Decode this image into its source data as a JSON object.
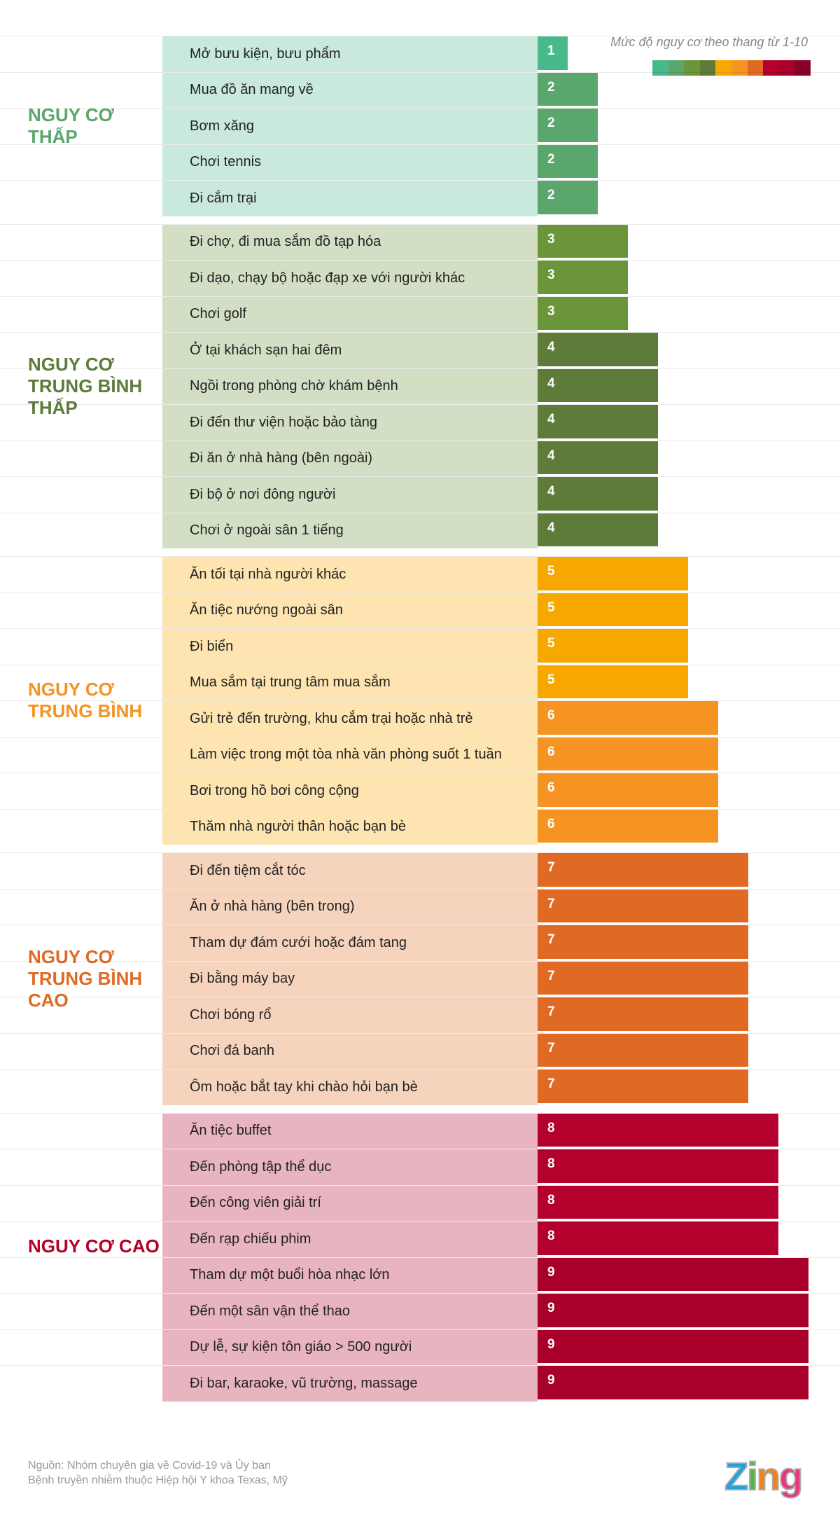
{
  "chart_data": {
    "type": "bar",
    "orientation": "horizontal",
    "legend_title": "Mức độ nguy cơ theo thang từ 1-10",
    "xlim": [
      0,
      10
    ],
    "scale_colors": [
      "#47b98a",
      "#5aa66c",
      "#6a9639",
      "#5e7b3a",
      "#f7a800",
      "#f59323",
      "#e06a23",
      "#b4002c",
      "#a8002b",
      "#8a0028"
    ],
    "groups": [
      {
        "title": "NGUY CƠ THẤP",
        "color": "#5aa66c",
        "bg": "#c8e9dc",
        "items": [
          {
            "label": "Mở bưu kiện, bưu phẩm",
            "value": 1
          },
          {
            "label": "Mua đồ ăn mang về",
            "value": 2
          },
          {
            "label": "Bơm xăng",
            "value": 2
          },
          {
            "label": "Chơi tennis",
            "value": 2
          },
          {
            "label": "Đi cắm trại",
            "value": 2
          }
        ]
      },
      {
        "title": "NGUY CƠ TRUNG BÌNH THẤP",
        "color": "#5e7b3a",
        "bg": "#d3dfc4",
        "items": [
          {
            "label": "Đi chợ, đi mua sắm đồ tạp hóa",
            "value": 3
          },
          {
            "label": "Đi dạo, chạy bộ hoặc đạp xe với người khác",
            "value": 3
          },
          {
            "label": "Chơi golf",
            "value": 3
          },
          {
            "label": "Ở tại khách sạn hai đêm",
            "value": 4
          },
          {
            "label": "Ngồi trong phòng chờ khám bệnh",
            "value": 4
          },
          {
            "label": "Đi đến thư viện hoặc bảo tàng",
            "value": 4
          },
          {
            "label": "Đi ăn ở nhà hàng (bên ngoài)",
            "value": 4
          },
          {
            "label": "Đi bộ ở nơi đông người",
            "value": 4
          },
          {
            "label": "Chơi ở ngoài sân 1 tiếng",
            "value": 4
          }
        ]
      },
      {
        "title": "NGUY CƠ TRUNG BÌNH",
        "color": "#f39323",
        "bg": "#fde4b0",
        "items": [
          {
            "label": "Ăn tối tại nhà người khác",
            "value": 5
          },
          {
            "label": "Ăn tiệc nướng ngoài sân",
            "value": 5
          },
          {
            "label": "Đi biển",
            "value": 5
          },
          {
            "label": "Mua sắm tại trung tâm mua sắm",
            "value": 5
          },
          {
            "label": "Gửi trẻ đến trường, khu cắm trại hoặc nhà trẻ",
            "value": 6
          },
          {
            "label": "Làm việc trong một tòa nhà văn phòng suốt 1 tuần",
            "value": 6
          },
          {
            "label": "Bơi trong hồ bơi công cộng",
            "value": 6
          },
          {
            "label": "Thăm nhà người thân hoặc bạn bè",
            "value": 6
          }
        ]
      },
      {
        "title": "NGUY CƠ TRUNG BÌNH CAO",
        "color": "#e06a23",
        "bg": "#f6d3bd",
        "items": [
          {
            "label": "Đi đến tiệm cắt tóc",
            "value": 7
          },
          {
            "label": "Ăn ở nhà hàng (bên trong)",
            "value": 7
          },
          {
            "label": "Tham dự đám cưới hoặc đám tang",
            "value": 7
          },
          {
            "label": "Đi bằng máy bay",
            "value": 7
          },
          {
            "label": "Chơi bóng rổ",
            "value": 7
          },
          {
            "label": "Chơi đá banh",
            "value": 7
          },
          {
            "label": "Ôm hoặc bắt tay khi chào hỏi bạn bè",
            "value": 7
          }
        ]
      },
      {
        "title": "NGUY CƠ CAO",
        "color": "#b4002c",
        "bg": "#e8b4c0",
        "items": [
          {
            "label": "Ăn tiệc buffet",
            "value": 8
          },
          {
            "label": "Đến phòng tập thể dục",
            "value": 8
          },
          {
            "label": "Đến công viên giải trí",
            "value": 8
          },
          {
            "label": "Đến rạp chiếu phim",
            "value": 8
          },
          {
            "label": "Tham dự một buổi hòa nhạc lớn",
            "value": 9
          },
          {
            "label": "Đến một sân vận thể thao",
            "value": 9
          },
          {
            "label": "Dự lễ, sự kiện tôn giáo > 500 người",
            "value": 9
          },
          {
            "label": "Đi bar, karaoke, vũ trường, massage",
            "value": 9
          }
        ]
      }
    ]
  },
  "footer": {
    "source_line1": "Nguồn: Nhóm chuyên gia về Covid-19 và Ủy ban",
    "source_line2": "Bệnh truyền nhiễm thuộc Hiệp hội Y khoa Texas, Mỹ",
    "logo": "Zing"
  }
}
